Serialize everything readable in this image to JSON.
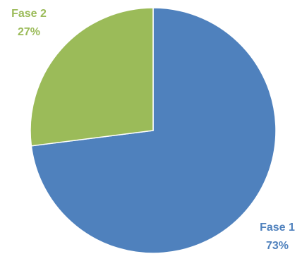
{
  "chart_data": {
    "type": "pie",
    "start_angle_deg": 0,
    "direction": "clockwise",
    "slices": [
      {
        "label": "Fase 1",
        "value": 73,
        "percent_label": "73%",
        "color": "#4f81bd"
      },
      {
        "label": "Fase 2",
        "value": 27,
        "percent_label": "27%",
        "color": "#9bbb59"
      }
    ],
    "legend": "none",
    "label_placement": "outside"
  }
}
